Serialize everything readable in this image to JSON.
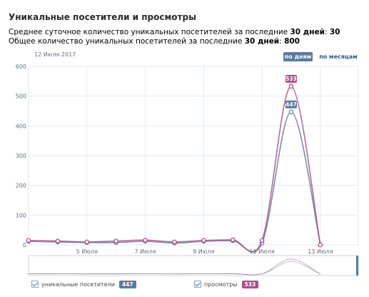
{
  "title": "Уникальные посетители и просмотры",
  "stats": {
    "line1_prefix": "Среднее суточное количество уникальных посетителей за последние ",
    "line1_days": "30 дней",
    "line1_mid": ": ",
    "line1_value": "30",
    "line2_prefix": "Общее количество уникальных посетителей за последние ",
    "line2_days": "30 дней",
    "line2_mid": ": ",
    "line2_value": "800"
  },
  "date_label": "12 Июля 2017",
  "period_buttons": {
    "days": "по дням",
    "months": "по месяцам"
  },
  "legend": {
    "visitors_label": "уникальные посетители",
    "visitors_value": "447",
    "views_label": "просмотры",
    "views_value": "533"
  },
  "colors": {
    "visitors": "#5b7a9f",
    "views": "#b14b8a",
    "grid": "#e6e9ee"
  },
  "chart_data": {
    "type": "line",
    "x": [
      3,
      4,
      5,
      6,
      7,
      8,
      9,
      10,
      11,
      12,
      13,
      14
    ],
    "x_tick_values": [
      5,
      7,
      9,
      11,
      13
    ],
    "x_tick_labels": [
      "5 Июля",
      "7 Июля",
      "9 Июля",
      "11 Июля",
      "13 Июля"
    ],
    "xlim": [
      3,
      14.3
    ],
    "ylim": [
      0,
      600
    ],
    "y_ticks": [
      0,
      100,
      200,
      300,
      400,
      500,
      600
    ],
    "series": [
      {
        "name": "уникальные посетители",
        "color": "#5b7a9f",
        "values": [
          12,
          10,
          8,
          8,
          12,
          6,
          12,
          14,
          6,
          447,
          0,
          null
        ]
      },
      {
        "name": "просмотры",
        "color": "#b14b8a",
        "values": [
          15,
          13,
          10,
          13,
          16,
          10,
          15,
          17,
          15,
          533,
          0,
          null
        ]
      }
    ],
    "labels": [
      {
        "series": 1,
        "x": 12,
        "text": "533"
      },
      {
        "series": 0,
        "x": 12,
        "text": "447"
      }
    ],
    "grid": true
  }
}
